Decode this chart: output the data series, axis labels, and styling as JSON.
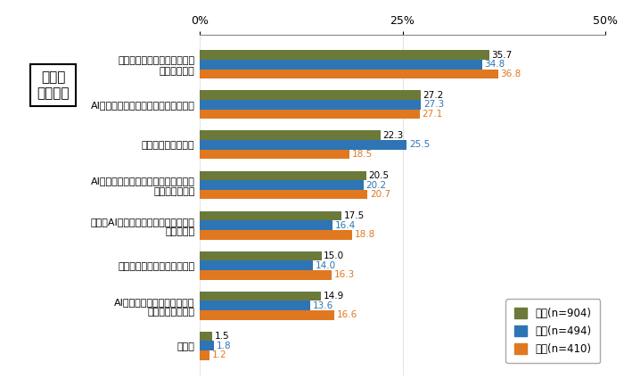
{
  "categories": [
    "システムエラーによる事故や\n混乱が生じる",
    "AIやロボットに自分の仕事を奪われる",
    "投資にお金が掛かる",
    "AIやロボットが人間よりも賢くなり、\n制御不能になる",
    "自分がAIやロボットを使いこなせるか\n分からない",
    "プライバシーの漏えい・侵害",
    "AIやロボットに投資した分、\n自分の収入が減る",
    "その他"
  ],
  "values_zentai": [
    35.7,
    27.2,
    22.3,
    20.5,
    17.5,
    15.0,
    14.9,
    1.5
  ],
  "values_dansei": [
    34.8,
    27.3,
    25.5,
    20.2,
    16.4,
    14.0,
    13.6,
    1.8
  ],
  "values_josei": [
    36.8,
    27.1,
    18.5,
    20.7,
    18.8,
    16.3,
    16.6,
    1.2
  ],
  "color_zentai": "#6b7a3a",
  "color_dansei": "#2e75b6",
  "color_josei": "#e07820",
  "legend_labels": [
    "全体(n=904)",
    "男性(n=494)",
    "女性(n=410)"
  ],
  "xlim": [
    0,
    50
  ],
  "xticks": [
    0,
    25,
    50
  ],
  "xticklabels": [
    "0%",
    "25%",
    "50%"
  ],
  "title_box_text": "仕事面\nでの不安",
  "bar_height": 0.23,
  "fontsize_label": 8.0,
  "fontsize_value": 7.5
}
